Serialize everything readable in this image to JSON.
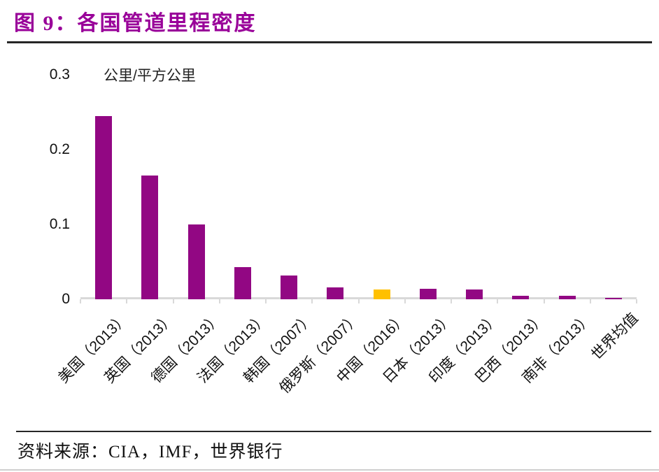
{
  "figure": {
    "title": "图 9：各国管道里程密度",
    "title_color": "#990099",
    "source": "资料来源：CIA，IMF，世界银行"
  },
  "chart_data": {
    "type": "bar",
    "title": "各国管道里程密度",
    "unit_label": "公里/平方公里",
    "categories": [
      "美国（2013）",
      "英国（2013）",
      "德国（2013）",
      "法国（2013）",
      "韩国（2007）",
      "俄罗斯（2007）",
      "中国（2016）",
      "日本（2013）",
      "印度（2013）",
      "巴西（2013）",
      "南非（2013）",
      "世界均值"
    ],
    "values": [
      0.245,
      0.165,
      0.1,
      0.043,
      0.032,
      0.016,
      0.013,
      0.014,
      0.013,
      0.005,
      0.005,
      0.002
    ],
    "highlight_index": 6,
    "bar_color": "#920783",
    "highlight_color": "#FFC000",
    "axis_color": "#D9D9D9",
    "y_ticks": [
      {
        "value": 0,
        "label": "0"
      },
      {
        "value": 0.1,
        "label": "0.1"
      },
      {
        "value": 0.2,
        "label": "0.2"
      },
      {
        "value": 0.3,
        "label": "0.3"
      }
    ],
    "ylim": [
      0,
      0.3
    ],
    "grid": false,
    "x_label_rotation": 45,
    "legend": "none"
  }
}
